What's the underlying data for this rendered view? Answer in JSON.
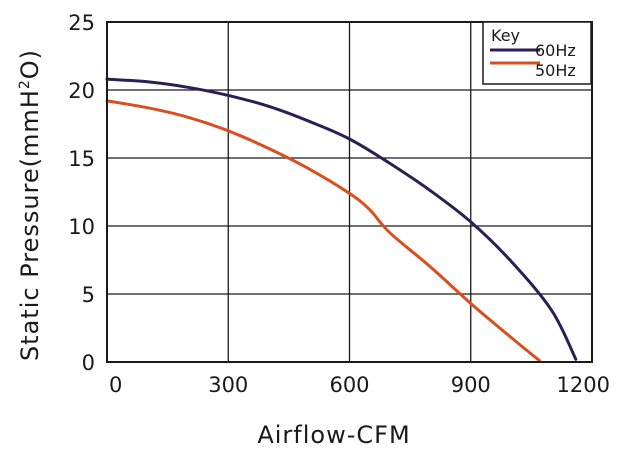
{
  "chart_data": {
    "type": "line",
    "title": "",
    "xlabel": "Airflow-CFM",
    "ylabel_main": "Static Pressure(mmH",
    "ylabel_sub": "2",
    "ylabel_end": "O)",
    "xlim": [
      0,
      1200
    ],
    "ylim": [
      0,
      25
    ],
    "xticks": [
      0,
      300,
      600,
      900,
      1200
    ],
    "yticks": [
      0,
      5,
      10,
      15,
      20,
      25
    ],
    "xtick_labels": [
      "0",
      "300",
      "600",
      "900",
      "1200"
    ],
    "ytick_labels": [
      "0",
      "5",
      "10",
      "15",
      "20",
      "25"
    ],
    "grid": true,
    "legend": {
      "title": "Key",
      "placement": "top-right"
    },
    "series": [
      {
        "name": "60Hz",
        "color": "#2b1f55",
        "points": [
          [
            0,
            20.8
          ],
          [
            100,
            20.6
          ],
          [
            200,
            20.2
          ],
          [
            300,
            19.6
          ],
          [
            400,
            18.8
          ],
          [
            500,
            17.7
          ],
          [
            600,
            16.4
          ],
          [
            700,
            14.6
          ],
          [
            800,
            12.6
          ],
          [
            900,
            10.3
          ],
          [
            1000,
            7.4
          ],
          [
            1100,
            3.8
          ],
          [
            1160,
            0.2
          ]
        ]
      },
      {
        "name": "50Hz",
        "color": "#d8501e",
        "points": [
          [
            0,
            19.2
          ],
          [
            100,
            18.7
          ],
          [
            200,
            18.0
          ],
          [
            300,
            17.0
          ],
          [
            400,
            15.7
          ],
          [
            500,
            14.2
          ],
          [
            600,
            12.4
          ],
          [
            650,
            11.2
          ],
          [
            700,
            9.5
          ],
          [
            800,
            7.0
          ],
          [
            900,
            4.3
          ],
          [
            1000,
            1.8
          ],
          [
            1070,
            0.1
          ]
        ]
      }
    ]
  }
}
